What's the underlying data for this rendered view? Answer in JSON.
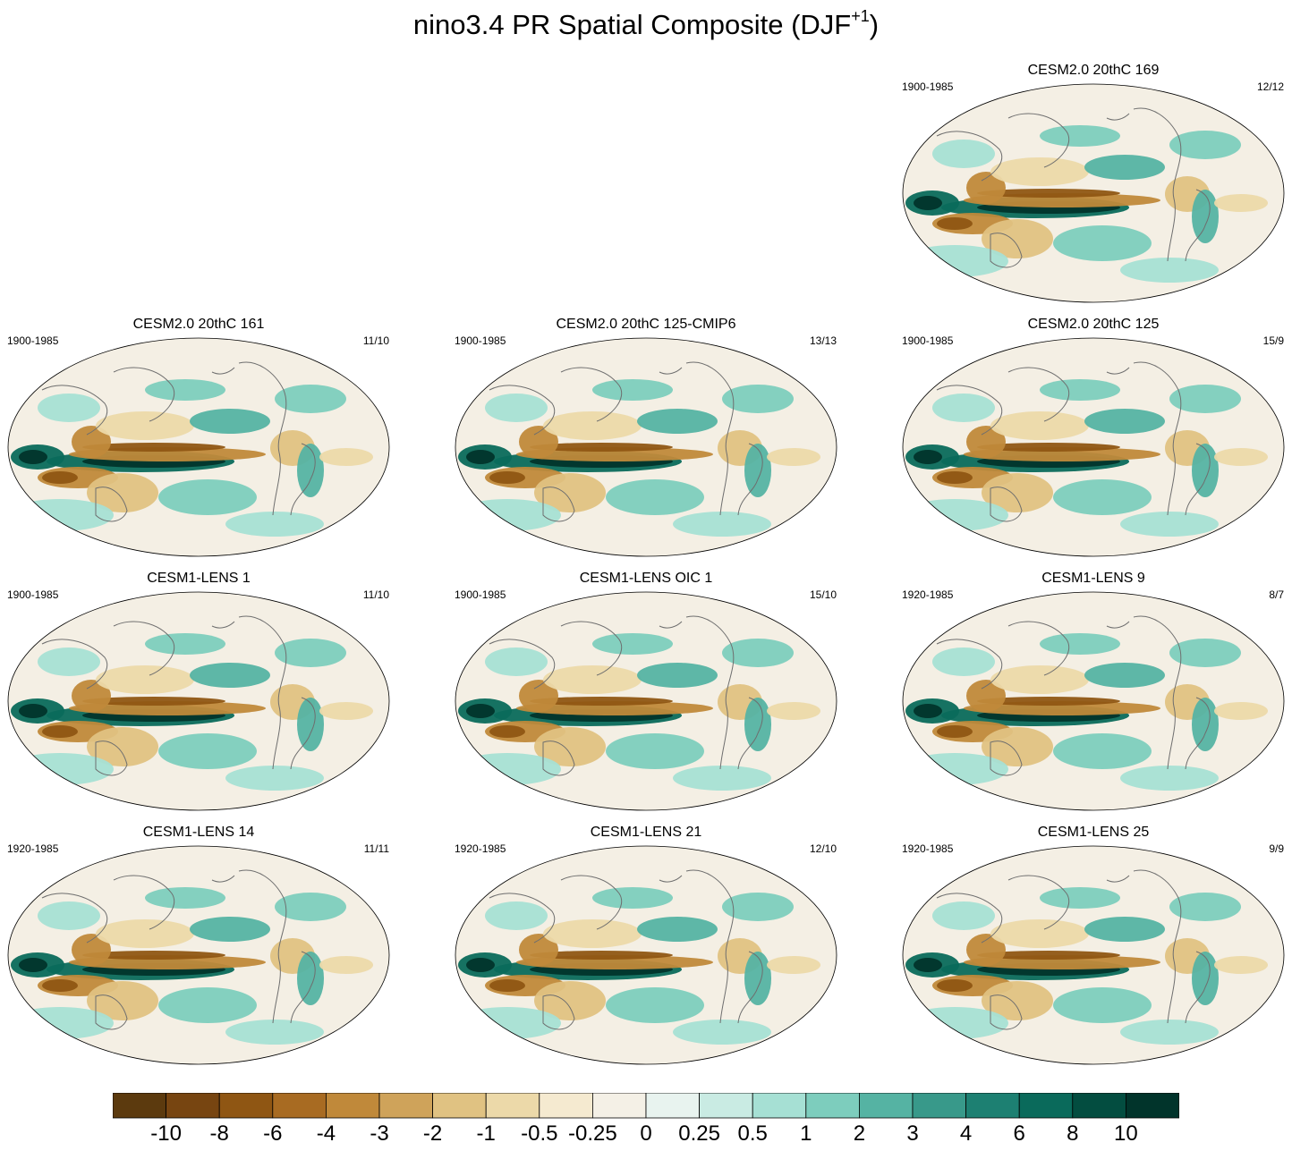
{
  "title": {
    "main": "nino3.4 PR Spatial Composite (DJF",
    "superscript": "+1",
    "closing": ")"
  },
  "colors": {
    "land_outline": "#6e6e6e",
    "ocean_bg": "#f4efe4",
    "map_border": "#000000",
    "scale": [
      "#5c3a0e",
      "#774511",
      "#8f5613",
      "#a86b22",
      "#c0893a",
      "#cfa35a",
      "#e0c282",
      "#ecd9a9",
      "#f5ead0",
      "#f4f0e6",
      "#e8f3ef",
      "#c9ebe3",
      "#a6e0d4",
      "#7dcdbd",
      "#55b3a3",
      "#38998a",
      "#1d8072",
      "#0a6a5b",
      "#034d40",
      "#01342b"
    ]
  },
  "colorbar": {
    "labels": [
      "-10",
      "-8",
      "-6",
      "-4",
      "-3",
      "-2",
      "-1",
      "-0.5",
      "-0.25",
      "0",
      "0.25",
      "0.5",
      "1",
      "2",
      "3",
      "4",
      "6",
      "8",
      "10"
    ]
  },
  "panels": [
    {
      "title": "CESM2.0 20thC 169",
      "years": "1900-1985",
      "count": "12/12"
    },
    {
      "title": "CESM2.0 20thC 161",
      "years": "1900-1985",
      "count": "11/10"
    },
    {
      "title": "CESM2.0 20thC 125-CMIP6",
      "years": "1900-1985",
      "count": "13/13"
    },
    {
      "title": "CESM2.0 20thC 125",
      "years": "1900-1985",
      "count": "15/9"
    },
    {
      "title": "CESM1-LENS 1",
      "years": "1900-1985",
      "count": "11/10"
    },
    {
      "title": "CESM1-LENS OIC 1",
      "years": "1900-1985",
      "count": "15/10"
    },
    {
      "title": "CESM1-LENS 9",
      "years": "1920-1985",
      "count": "8/7"
    },
    {
      "title": "CESM1-LENS 14",
      "years": "1920-1985",
      "count": "11/11"
    },
    {
      "title": "CESM1-LENS 21",
      "years": "1920-1985",
      "count": "12/10"
    },
    {
      "title": "CESM1-LENS 25",
      "years": "1920-1985",
      "count": "9/9"
    }
  ]
}
